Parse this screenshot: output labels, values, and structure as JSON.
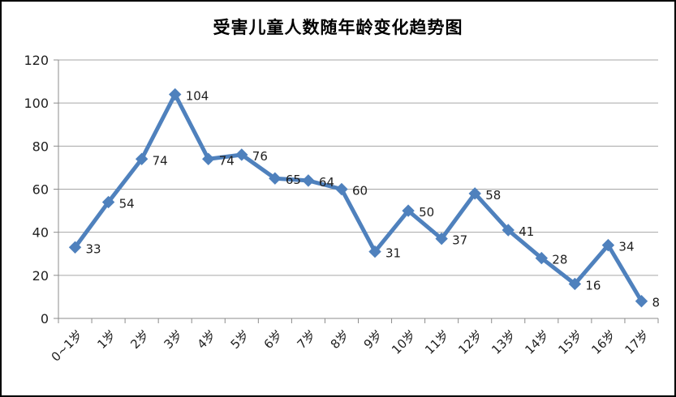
{
  "chart_data": {
    "type": "line",
    "title": "受害儿童人数随年龄变化趋势图",
    "categories": [
      "0~1岁",
      "1岁",
      "2岁",
      "3岁",
      "4岁",
      "5岁",
      "6岁",
      "7岁",
      "8岁",
      "9岁",
      "10岁",
      "11岁",
      "12岁",
      "13岁",
      "14岁",
      "15岁",
      "16岁",
      "17岁"
    ],
    "values": [
      33,
      54,
      74,
      104,
      74,
      76,
      65,
      64,
      60,
      31,
      50,
      37,
      58,
      41,
      28,
      16,
      34,
      8
    ],
    "data_labels_visible": true,
    "yticks": [
      0,
      20,
      40,
      60,
      80,
      100,
      120
    ],
    "ylim": [
      0,
      120
    ],
    "xlabel": "",
    "ylabel": "",
    "grid": "horizontal",
    "legend_position": "none",
    "marker": "diamond",
    "x_label_rotation_deg": -45,
    "colors": {
      "line": "#4f81bd",
      "marker": "#4f81bd",
      "grid": "#a6a6a6",
      "axis": "#8c8c8c",
      "text": "#1f1f1f",
      "title": "#000000",
      "background": "#ffffff",
      "border": "#000000"
    }
  }
}
